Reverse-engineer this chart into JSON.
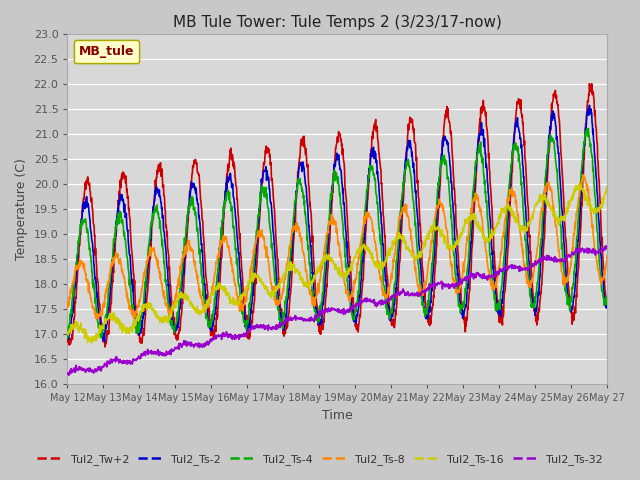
{
  "title": "MB Tule Tower: Tule Temps 2 (3/23/17-now)",
  "xlabel": "Time",
  "ylabel": "Temperature (C)",
  "ylim": [
    16.0,
    23.0
  ],
  "yticks": [
    16.0,
    16.5,
    17.0,
    17.5,
    18.0,
    18.5,
    19.0,
    19.5,
    20.0,
    20.5,
    21.0,
    21.5,
    22.0,
    22.5,
    23.0
  ],
  "xtick_labels": [
    "May 12",
    "May 13",
    "May 14",
    "May 15",
    "May 16",
    "May 17",
    "May 18",
    "May 19",
    "May 20",
    "May 21",
    "May 22",
    "May 23",
    "May 24",
    "May 25",
    "May 26",
    "May 27"
  ],
  "fig_bg_color": "#c8c8c8",
  "plot_bg_color": "#d8d8d8",
  "grid_color": "#ffffff",
  "series_names": [
    "Tul2_Tw+2",
    "Tul2_Ts-2",
    "Tul2_Ts-4",
    "Tul2_Ts-8",
    "Tul2_Ts-16",
    "Tul2_Ts-32"
  ],
  "series_colors": [
    "#cc0000",
    "#0000cc",
    "#00aa00",
    "#ff8800",
    "#cccc00",
    "#9900cc"
  ],
  "legend_label": "MB_tule",
  "legend_box_color": "#ffffcc",
  "legend_text_color": "#880000",
  "n_days": 15,
  "points_per_day": 96
}
